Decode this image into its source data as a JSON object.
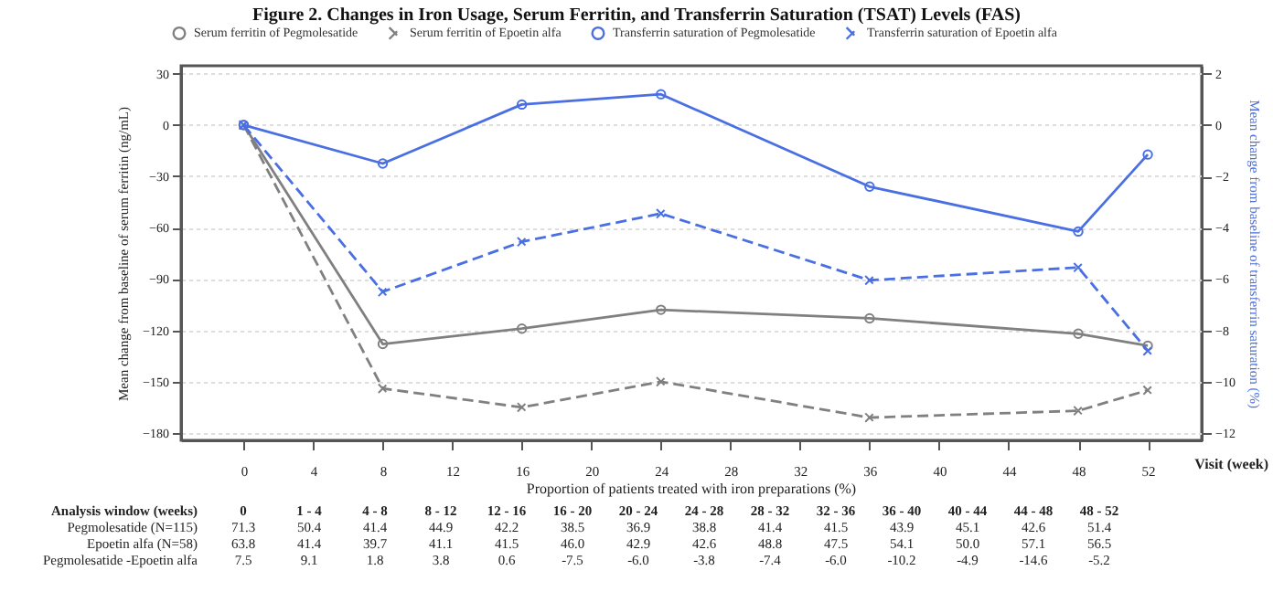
{
  "chart_data": {
    "type": "line",
    "title": "Figure 2. Changes in Iron Usage, Serum Ferritin, and Transferrin Saturation (TSAT) Levels (FAS)",
    "xlabel": "Visit (week)",
    "ylabel": "Mean change from baseline of serum ferritin (ng/mL)",
    "y2label": "Mean change from baseline of transferrin saturation (%)",
    "x": [
      0,
      8,
      16,
      24,
      36,
      48,
      52
    ],
    "series": [
      {
        "name": "Serum ferritin of Pegmolesatide",
        "color": "#808080",
        "marker": "circle",
        "line_style": "solid",
        "values": [
          0,
          -128,
          -119,
          -108,
          -113,
          -122,
          -129
        ]
      },
      {
        "name": "Serum ferritin of Epoetin alfa",
        "color": "#808080",
        "marker": "cross",
        "line_style": "dashed",
        "values": [
          0,
          -154,
          -165,
          -150,
          -171,
          -167,
          -155
        ]
      },
      {
        "name": "Transferrin saturation of Pegmolesatide",
        "color": "#4a6fe3",
        "marker": "circle",
        "line_style": "solid",
        "axis": "y2",
        "values": [
          0,
          -1.5,
          0.8,
          1.2,
          -2.4,
          -4.15,
          -1.15
        ]
      },
      {
        "name": "Transferrin saturation of Epoetin alfa",
        "color": "#4a6fe3",
        "marker": "cross",
        "line_style": "dashed",
        "axis": "y2",
        "values": [
          0,
          -6.5,
          -4.55,
          -3.45,
          -6.05,
          -5.55,
          -8.8
        ]
      }
    ],
    "xlim": [
      -3.6,
      55.1
    ],
    "xticks": [
      0,
      4,
      8,
      12,
      16,
      20,
      24,
      28,
      32,
      36,
      40,
      44,
      48,
      52
    ],
    "ylim": [
      -184.3,
      34.6
    ],
    "yticks": [
      -180,
      -150,
      -120,
      -90,
      -60,
      -30,
      0,
      30
    ],
    "y2lim": [
      -12.29,
      2.31
    ],
    "y2ticks": [
      -12,
      -10,
      -8,
      -6,
      -4,
      -2,
      0,
      2
    ],
    "grid": "y",
    "legend": "top",
    "annotations": [
      "Proportion of patients treated with iron preparations (%)",
      "Analysis window (weeks)",
      "0",
      "1 - 4",
      "4 - 8",
      "8 - 12",
      "12 - 16",
      "16 - 20",
      "20 - 24",
      "24 - 28",
      "28 - 32",
      "32 - 36",
      "36 - 40",
      "40 - 44",
      "44 - 48",
      "48 - 52",
      "Pegmolesatide (N=115)",
      "71.3",
      "50.4",
      "41.4",
      "44.9",
      "42.2",
      "38.5",
      "36.9",
      "38.8",
      "41.4",
      "41.5",
      "43.9",
      "45.1",
      "42.6",
      "51.4",
      "Epoetin alfa (N=58)",
      "63.8",
      "41.4",
      "39.7",
      "41.1",
      "41.5",
      "46.0",
      "42.9",
      "42.6",
      "48.8",
      "47.5",
      "54.1",
      "50.0",
      "57.1",
      "56.5",
      "Pegmolesatide -Epoetin alfa",
      "7.5",
      "9.1",
      "1.8",
      "3.8",
      "0.6",
      "-7.5",
      "-6.0",
      "-3.8",
      "-7.4",
      "-6.0",
      "-10.2",
      "-4.9",
      "-14.6",
      "-5.2"
    ]
  }
}
